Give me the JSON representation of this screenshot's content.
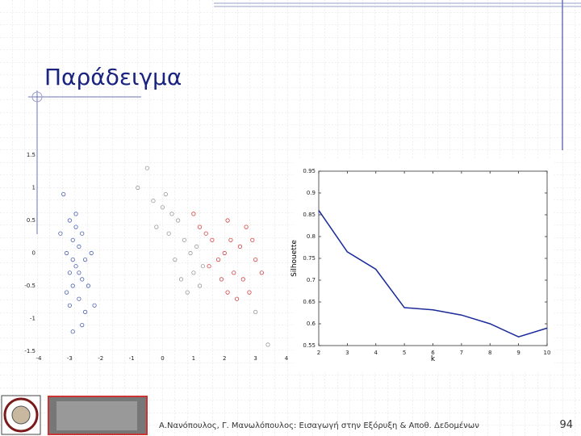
{
  "title": "Παράδειγμα",
  "footer": "Α.Νανόπουλος, Γ. Μανωλόπουλος: Εισαγωγή στην Εξόρυξη & Αποθ. Δεδομένων",
  "page_number": "94",
  "chart_data": [
    {
      "type": "scatter",
      "xlim": [
        -4,
        4
      ],
      "ylim": [
        -1.5,
        1.5
      ],
      "xticks": [
        -4,
        -3,
        -2,
        -1,
        0,
        1,
        2,
        3,
        4
      ],
      "yticks": [
        -1.5,
        -1,
        -0.5,
        0,
        0.5,
        1,
        1.5
      ],
      "frame": false,
      "series": [
        {
          "color": "#4a5fb0",
          "x": [
            -3.2,
            -3.0,
            -2.8,
            -2.6,
            -2.9,
            -2.7,
            -3.1,
            -2.5,
            -2.8,
            -3.0,
            -2.6,
            -2.9,
            -2.4,
            -2.7,
            -3.0,
            -2.5,
            -2.6,
            -2.8,
            -3.3,
            -2.3,
            -2.9,
            -2.7,
            -3.1,
            -2.2,
            -2.9
          ],
          "values": [
            0.9,
            0.5,
            0.4,
            0.3,
            0.2,
            0.1,
            0.0,
            -0.1,
            -0.2,
            -0.3,
            -0.4,
            -0.5,
            -0.5,
            -0.7,
            -0.8,
            -0.9,
            -1.1,
            0.6,
            0.3,
            0.0,
            -0.1,
            -0.3,
            -0.6,
            -0.8,
            -1.2
          ]
        },
        {
          "color": "#d04040",
          "x": [
            1.0,
            1.4,
            2.1,
            2.5,
            2.9,
            1.8,
            2.3,
            2.6,
            1.6,
            2.0,
            3.0,
            2.8,
            1.2,
            2.2,
            2.7,
            1.9,
            3.2,
            2.4,
            1.5,
            2.1
          ],
          "values": [
            0.6,
            0.3,
            0.5,
            0.1,
            0.2,
            -0.1,
            -0.3,
            -0.4,
            0.2,
            0.0,
            -0.1,
            -0.6,
            0.4,
            0.2,
            0.4,
            -0.4,
            -0.3,
            -0.7,
            -0.2,
            -0.6
          ]
        },
        {
          "color": "#999999",
          "x": [
            -0.5,
            -0.8,
            -0.3,
            0.0,
            0.3,
            0.5,
            0.2,
            0.7,
            0.9,
            0.4,
            1.0,
            0.6,
            1.2,
            0.8,
            -0.2,
            1.1,
            0.1,
            1.3,
            3.0,
            3.4
          ],
          "values": [
            1.3,
            1.0,
            0.8,
            0.7,
            0.6,
            0.5,
            0.3,
            0.2,
            0.0,
            -0.1,
            -0.3,
            -0.4,
            -0.5,
            -0.6,
            0.4,
            0.1,
            0.9,
            -0.2,
            -0.9,
            -1.4
          ]
        }
      ]
    },
    {
      "type": "line",
      "x_label": "k",
      "y_label": "Silhouette",
      "x": [
        2,
        3,
        4,
        5,
        6,
        7,
        8,
        9,
        10
      ],
      "xlim": [
        2,
        10
      ],
      "ylim": [
        0.55,
        0.95
      ],
      "xticks": [
        2,
        3,
        4,
        5,
        6,
        7,
        8,
        9,
        10
      ],
      "yticks": [
        0.55,
        0.6,
        0.65,
        0.7,
        0.75,
        0.8,
        0.85,
        0.9,
        0.95
      ],
      "frame": true,
      "series": [
        {
          "color": "#1a2a9a",
          "values": [
            0.86,
            0.765,
            0.725,
            0.637,
            0.632,
            0.62,
            0.6,
            0.57,
            0.59
          ]
        }
      ]
    }
  ]
}
